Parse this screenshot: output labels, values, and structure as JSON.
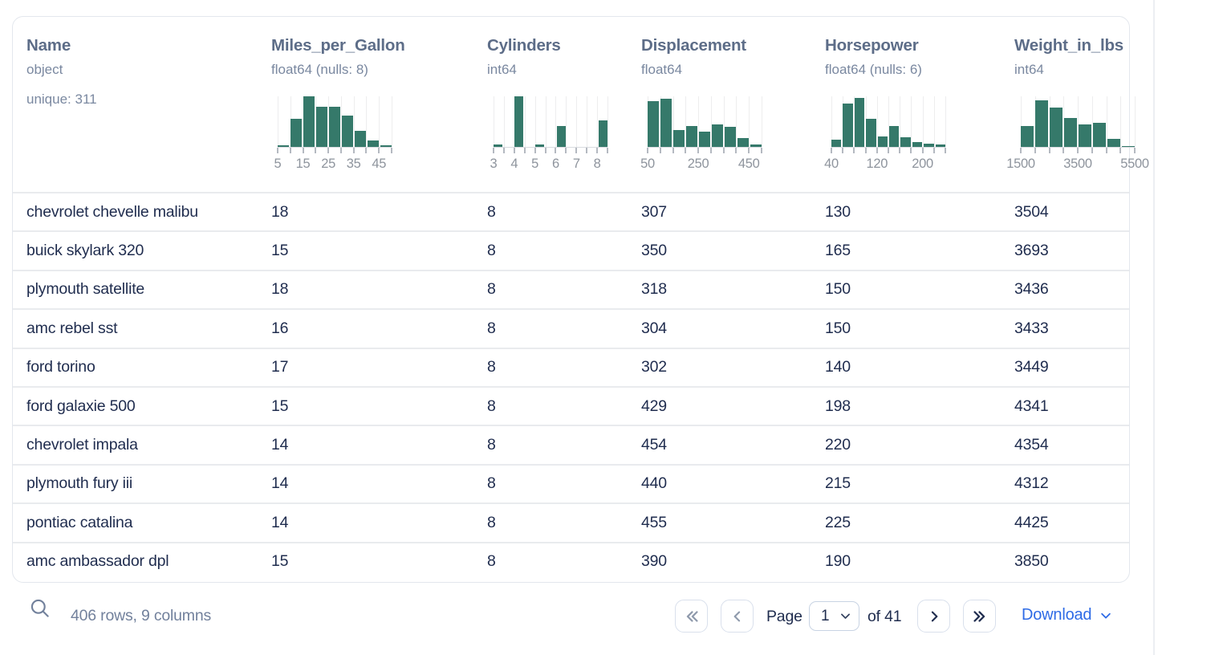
{
  "table": {
    "columns": [
      {
        "name": "Name",
        "dtype": "object",
        "extra": "unique: 311",
        "hist": null
      },
      {
        "name": "Miles_per_Gallon",
        "dtype": "float64 (nulls: 8)",
        "hist": {
          "bars": [
            0.03,
            0.55,
            1.0,
            0.8,
            0.8,
            0.62,
            0.32,
            0.12,
            0.03
          ],
          "bin_edges": [
            5,
            10,
            15,
            20,
            25,
            30,
            35,
            40,
            45,
            50
          ],
          "tick_labels": [
            "5",
            "",
            "15",
            "",
            "25",
            "",
            "35",
            "",
            "45",
            ""
          ]
        }
      },
      {
        "name": "Cylinders",
        "dtype": "int64",
        "hist": {
          "bars": [
            0.04,
            0,
            1.0,
            0,
            0.04,
            0,
            0.42,
            0,
            0,
            0,
            0.52
          ],
          "bin_edges": [
            3,
            3.5,
            4,
            4.5,
            5,
            5.5,
            6,
            6.5,
            7,
            7.5,
            8,
            8.5
          ],
          "tick_labels": [
            "3",
            "",
            "4",
            "",
            "5",
            "",
            "6",
            "",
            "7",
            "",
            "8",
            ""
          ]
        }
      },
      {
        "name": "Displacement",
        "dtype": "float64",
        "hist": {
          "bars": [
            0.9,
            0.96,
            0.33,
            0.42,
            0.3,
            0.45,
            0.4,
            0.18,
            0.05
          ],
          "bin_edges": [
            50,
            100,
            150,
            200,
            250,
            300,
            350,
            400,
            450,
            500
          ],
          "tick_labels": [
            "50",
            "",
            "",
            "",
            "250",
            "",
            "",
            "",
            "450",
            ""
          ]
        }
      },
      {
        "name": "Horsepower",
        "dtype": "float64 (nulls: 6)",
        "hist": {
          "bars": [
            0.15,
            0.85,
            0.97,
            0.56,
            0.2,
            0.42,
            0.19,
            0.1,
            0.06,
            0.05
          ],
          "bin_edges": [
            40,
            60,
            80,
            100,
            120,
            140,
            160,
            180,
            200,
            220,
            240
          ],
          "tick_labels": [
            "40",
            "",
            "",
            "",
            "120",
            "",
            "",
            "",
            "200",
            "",
            ""
          ]
        }
      },
      {
        "name": "Weight_in_lbs",
        "dtype": "int64",
        "hist": {
          "bars": [
            0.42,
            0.92,
            0.78,
            0.57,
            0.44,
            0.47,
            0.16,
            0.02
          ],
          "bin_edges": [
            1500,
            2000,
            2500,
            3000,
            3500,
            4000,
            4500,
            5000,
            5500
          ],
          "tick_labels": [
            "1500",
            "",
            "",
            "",
            "3500",
            "",
            "",
            "",
            "5500"
          ]
        }
      }
    ],
    "rows": [
      [
        "chevrolet chevelle malibu",
        "18",
        "8",
        "307",
        "130",
        "3504"
      ],
      [
        "buick skylark 320",
        "15",
        "8",
        "350",
        "165",
        "3693"
      ],
      [
        "plymouth satellite",
        "18",
        "8",
        "318",
        "150",
        "3436"
      ],
      [
        "amc rebel sst",
        "16",
        "8",
        "304",
        "150",
        "3433"
      ],
      [
        "ford torino",
        "17",
        "8",
        "302",
        "140",
        "3449"
      ],
      [
        "ford galaxie 500",
        "15",
        "8",
        "429",
        "198",
        "4341"
      ],
      [
        "chevrolet impala",
        "14",
        "8",
        "454",
        "220",
        "4354"
      ],
      [
        "plymouth fury iii",
        "14",
        "8",
        "440",
        "215",
        "4312"
      ],
      [
        "pontiac catalina",
        "14",
        "8",
        "455",
        "225",
        "4425"
      ],
      [
        "amc ambassador dpl",
        "15",
        "8",
        "390",
        "190",
        "3850"
      ]
    ]
  },
  "footer": {
    "summary": "406 rows, 9 columns",
    "page_label": "Page",
    "page_value": "1",
    "of_label": "of 41",
    "download_label": "Download"
  },
  "colors": {
    "histogram_green": "#35796a",
    "link_blue": "#2e6be6",
    "header_slate": "#5d6d88",
    "muted_slate": "#7a88a0",
    "row_text_navy": "#1f2c4e"
  }
}
